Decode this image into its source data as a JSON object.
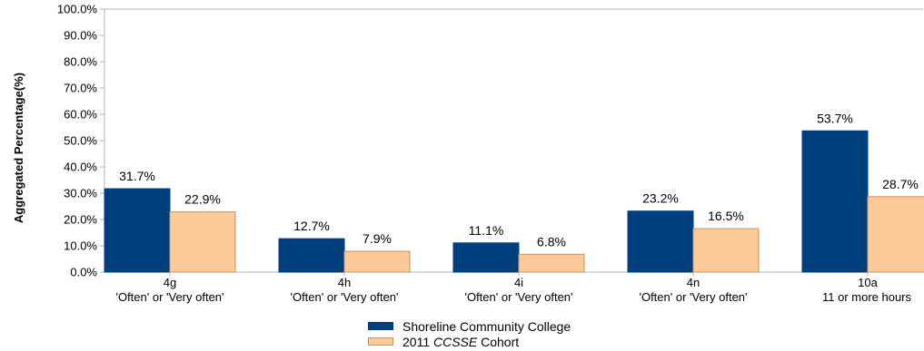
{
  "chart_data": {
    "type": "bar",
    "ylabel": "Aggregated Percentage(%)",
    "ylim": [
      0,
      100
    ],
    "yticks": [
      "0.0%",
      "10.0%",
      "20.0%",
      "30.0%",
      "40.0%",
      "50.0%",
      "60.0%",
      "70.0%",
      "80.0%",
      "90.0%",
      "100.0%"
    ],
    "categories": [
      {
        "code": "4g",
        "sub": "'Often' or 'Very often'"
      },
      {
        "code": "4h",
        "sub": "'Often' or 'Very often'"
      },
      {
        "code": "4i",
        "sub": "'Often' or 'Very often'"
      },
      {
        "code": "4n",
        "sub": "'Often' or 'Very often'"
      },
      {
        "code": "10a",
        "sub": "11 or more hours"
      }
    ],
    "series": [
      {
        "name": "Shoreline Community College",
        "color": "#003f7d",
        "values": [
          31.7,
          12.7,
          11.1,
          23.2,
          53.7
        ],
        "labels": [
          "31.7%",
          "12.7%",
          "11.1%",
          "23.2%",
          "53.7%"
        ]
      },
      {
        "name": "2011 CCSSE Cohort",
        "name_prefix": "2011 ",
        "name_italic": "CCSSE",
        "name_suffix": " Cohort",
        "color": "#fcc997",
        "values": [
          22.9,
          7.9,
          6.8,
          16.5,
          28.7
        ],
        "labels": [
          "22.9%",
          "7.9%",
          "6.8%",
          "16.5%",
          "28.7%"
        ]
      }
    ],
    "grid": false,
    "legend_position": "bottom-center"
  }
}
